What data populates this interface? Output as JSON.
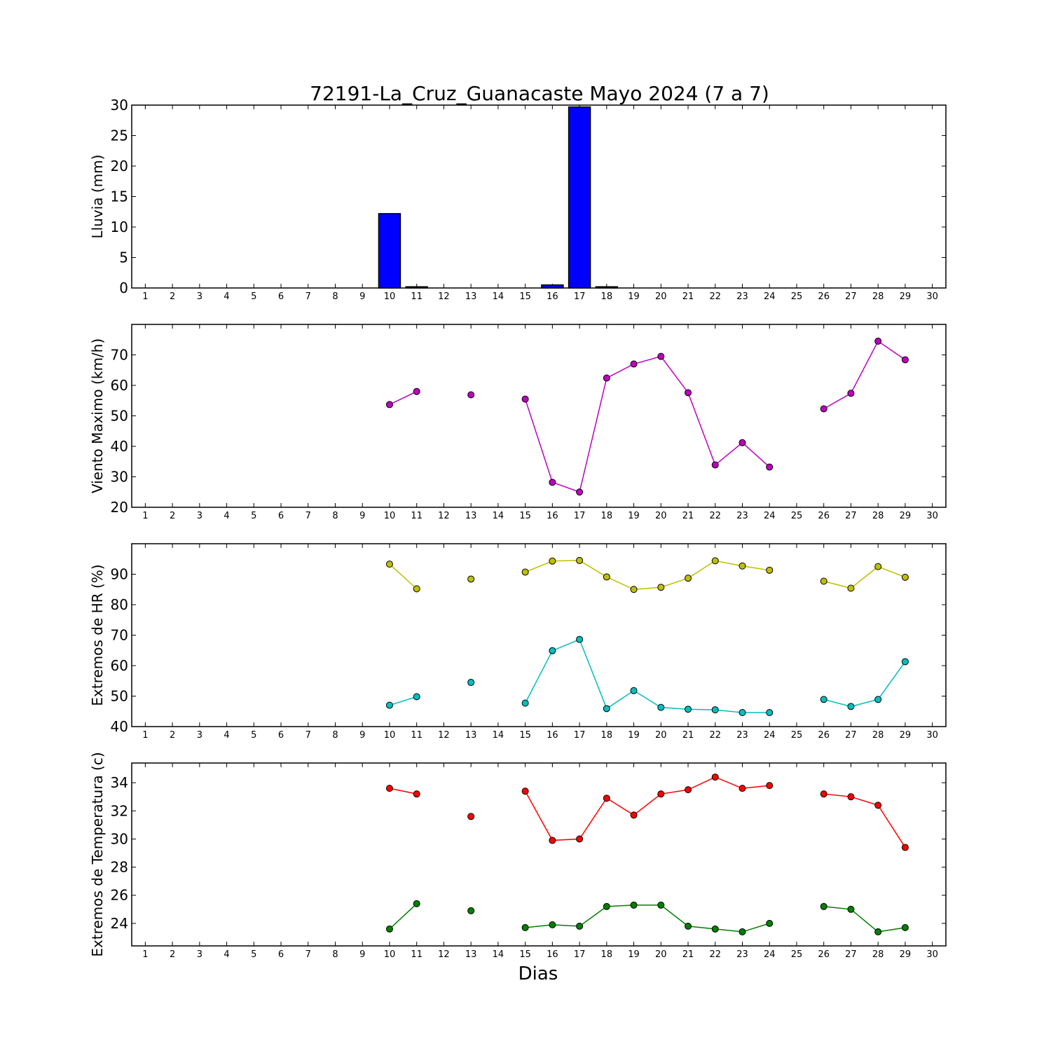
{
  "title": "72191-La_Cruz_Guanacaste Mayo 2024  (7 a 7)",
  "xlabel": "Dias",
  "x_ticks": [
    1,
    2,
    3,
    4,
    5,
    6,
    7,
    8,
    9,
    10,
    11,
    12,
    13,
    14,
    15,
    16,
    17,
    18,
    19,
    20,
    21,
    22,
    23,
    24,
    25,
    26,
    27,
    28,
    29,
    30
  ],
  "colors": {
    "rain": "#0000ff",
    "wind": "#bf00bf",
    "hr_max": "#bfbf00",
    "hr_min": "#00bfbf",
    "t_max": "#ff0000",
    "t_min": "#008000"
  },
  "chart_data": [
    {
      "type": "bar",
      "ylabel": "Lluvia (mm)",
      "ylim": [
        0,
        30
      ],
      "yticks": [
        0,
        5,
        10,
        15,
        20,
        25,
        30
      ],
      "xlim": [
        0.5,
        30.5
      ],
      "x": [
        1,
        2,
        3,
        4,
        5,
        6,
        7,
        8,
        9,
        10,
        11,
        12,
        13,
        14,
        15,
        16,
        17,
        18,
        19,
        20,
        21,
        22,
        23,
        24,
        25,
        26,
        27,
        28,
        29
      ],
      "values": [
        0,
        0,
        0,
        0,
        0,
        0,
        0,
        0,
        0,
        12.2,
        0.2,
        0,
        0,
        0,
        0,
        0.5,
        29.7,
        0.2,
        0,
        0,
        0,
        0,
        0,
        0,
        0,
        0,
        0,
        0,
        0
      ],
      "color": "#0000ff"
    },
    {
      "type": "line",
      "ylabel": "Viento Maximo (km/h)",
      "ylim": [
        20,
        80
      ],
      "yticks": [
        20,
        30,
        40,
        50,
        60,
        70
      ],
      "xlim": [
        0.5,
        30.5
      ],
      "series": [
        {
          "x": [
            10,
            11,
            12,
            13,
            14,
            15,
            16,
            17,
            18,
            19,
            20,
            21,
            22,
            23,
            24,
            25,
            26,
            27,
            28,
            29
          ],
          "values": [
            53.7,
            58.0,
            null,
            56.9,
            null,
            55.5,
            28.2,
            25.0,
            62.4,
            67.0,
            69.5,
            57.6,
            33.9,
            41.2,
            33.2,
            null,
            52.3,
            57.4,
            74.5,
            68.4
          ],
          "color": "#bf00bf"
        }
      ]
    },
    {
      "type": "line",
      "ylabel": "Extremos de HR (%)",
      "ylim": [
        40,
        100
      ],
      "yticks": [
        40,
        50,
        60,
        70,
        80,
        90
      ],
      "xlim": [
        0.5,
        30.5
      ],
      "series": [
        {
          "x": [
            10,
            11,
            12,
            13,
            14,
            15,
            16,
            17,
            18,
            19,
            20,
            21,
            22,
            23,
            24,
            25,
            26,
            27,
            28,
            29
          ],
          "values": [
            93.3,
            85.2,
            null,
            88.4,
            null,
            90.7,
            94.3,
            94.5,
            89.1,
            85.0,
            85.7,
            88.7,
            94.4,
            92.7,
            91.3,
            null,
            87.7,
            85.4,
            92.5,
            89.0
          ],
          "color": "#bfbf00"
        },
        {
          "x": [
            10,
            11,
            12,
            13,
            14,
            15,
            16,
            17,
            18,
            19,
            20,
            21,
            22,
            23,
            24,
            25,
            26,
            27,
            28,
            29
          ],
          "values": [
            47.0,
            49.8,
            null,
            54.5,
            null,
            47.7,
            64.9,
            68.6,
            45.9,
            51.8,
            46.3,
            45.7,
            45.5,
            44.6,
            44.6,
            null,
            48.9,
            46.6,
            48.9,
            61.3
          ],
          "color": "#00bfbf"
        }
      ]
    },
    {
      "type": "line",
      "ylabel": "Extremos de Temperatura (c)",
      "ylim": [
        22.4,
        35.4
      ],
      "yticks": [
        24,
        26,
        28,
        30,
        32,
        34
      ],
      "xlim": [
        0.5,
        30.5
      ],
      "series": [
        {
          "x": [
            10,
            11,
            12,
            13,
            14,
            15,
            16,
            17,
            18,
            19,
            20,
            21,
            22,
            23,
            24,
            25,
            26,
            27,
            28,
            29
          ],
          "values": [
            33.6,
            33.2,
            null,
            31.6,
            null,
            33.4,
            29.9,
            30.0,
            32.9,
            31.7,
            33.2,
            33.5,
            34.4,
            33.6,
            33.8,
            null,
            33.2,
            33.0,
            32.4,
            29.4
          ],
          "color": "#ff0000"
        },
        {
          "x": [
            10,
            11,
            12,
            13,
            14,
            15,
            16,
            17,
            18,
            19,
            20,
            21,
            22,
            23,
            24,
            25,
            26,
            27,
            28,
            29
          ],
          "values": [
            23.6,
            25.4,
            null,
            24.9,
            null,
            23.7,
            23.9,
            23.8,
            25.2,
            25.3,
            25.3,
            23.8,
            23.6,
            23.4,
            24.0,
            null,
            25.2,
            25.0,
            23.4,
            23.7
          ],
          "color": "#008000"
        }
      ]
    }
  ]
}
